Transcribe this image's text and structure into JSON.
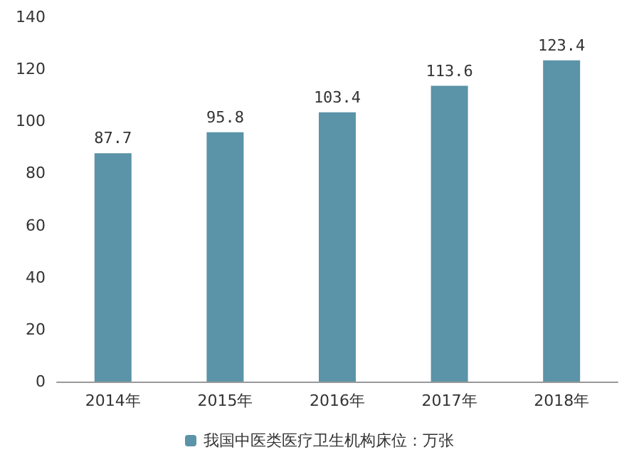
{
  "chart_data": {
    "type": "bar",
    "categories": [
      "2014年",
      "2015年",
      "2016年",
      "2017年",
      "2018年"
    ],
    "series": [
      {
        "name": "我国中医类医疗卫生机构床位：万张",
        "color": "#5b93a8",
        "values": [
          87.7,
          95.8,
          103.4,
          113.6,
          123.4
        ]
      }
    ],
    "ylim": [
      0,
      140
    ],
    "yticks": [
      0,
      20,
      40,
      60,
      80,
      100,
      120,
      140
    ],
    "grid": false,
    "legend": "bottom",
    "data_labels": true
  }
}
